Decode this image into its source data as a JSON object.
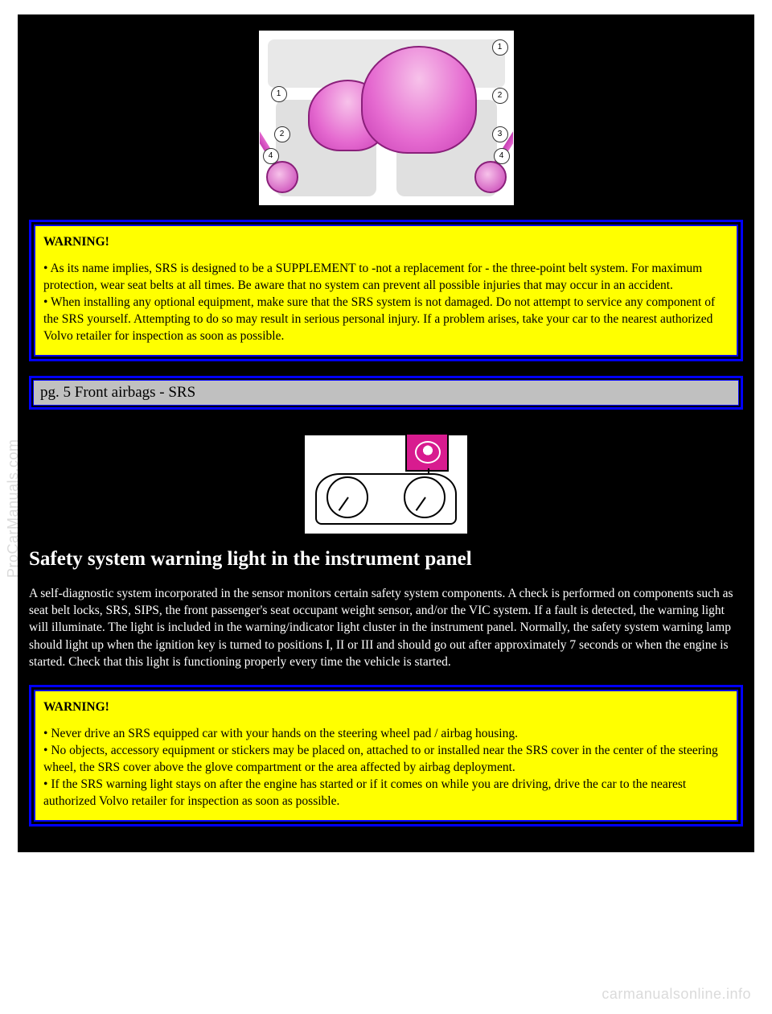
{
  "colors": {
    "page_bg": "#000000",
    "warning_bg": "#ffff00",
    "warning_border": "#0000ff",
    "header_bg": "#c0c0c0",
    "body_text": "#ffffff",
    "accent_magenta": "#d81b8f",
    "watermark": "#bdbdbd"
  },
  "diagram1": {
    "callouts": [
      "1",
      "1",
      "2",
      "2",
      "3",
      "4",
      "4"
    ]
  },
  "warning1": {
    "title": "WARNING!",
    "items": [
      "As its name implies, SRS is designed to be a SUPPLEMENT to -not a replacement for - the three-point belt system. For maximum protection, wear seat belts at all times. Be aware that no system can prevent all possible injuries that may occur in an accident.",
      "When installing any optional equipment, make sure that the SRS system is not damaged. Do not attempt to service any component of the SRS yourself. Attempting to do so may result in serious personal injury. If a problem arises, take your car to the nearest authorized Volvo retailer for inspection as soon as possible."
    ]
  },
  "page_header": "pg. 5 Front airbags - SRS",
  "section_heading": "Safety system warning light in the instrument panel",
  "body_paragraph": "A self-diagnostic system incorporated in the sensor monitors certain safety system components. A check is performed on components such as seat belt locks, SRS, SIPS, the front passenger's seat occupant weight sensor, and/or the VIC system. If a fault is detected, the warning light will illuminate. The light is included in the warning/indicator light cluster in the instrument panel. Normally, the safety system warning lamp should light up when the ignition key is turned to positions I, II or III and should go out after approximately 7 seconds or when the engine is started. Check that this light is functioning properly every time the vehicle is started.",
  "warning2": {
    "title": "WARNING!",
    "items": [
      "Never drive an SRS equipped car with your hands on the steering wheel pad / airbag housing.",
      "No objects, accessory equipment or stickers may be placed on, attached to or installed near the SRS cover in the center of the steering wheel, the SRS cover above the glove compartment or the area affected by airbag deployment.",
      "If the SRS warning light stays on after the engine has started or if it comes on while you are driving, drive the car to the nearest authorized Volvo retailer for inspection as soon as possible."
    ]
  },
  "watermarks": {
    "left": "ProCarManuals.com",
    "bottom": "carmanualsonline.info"
  }
}
